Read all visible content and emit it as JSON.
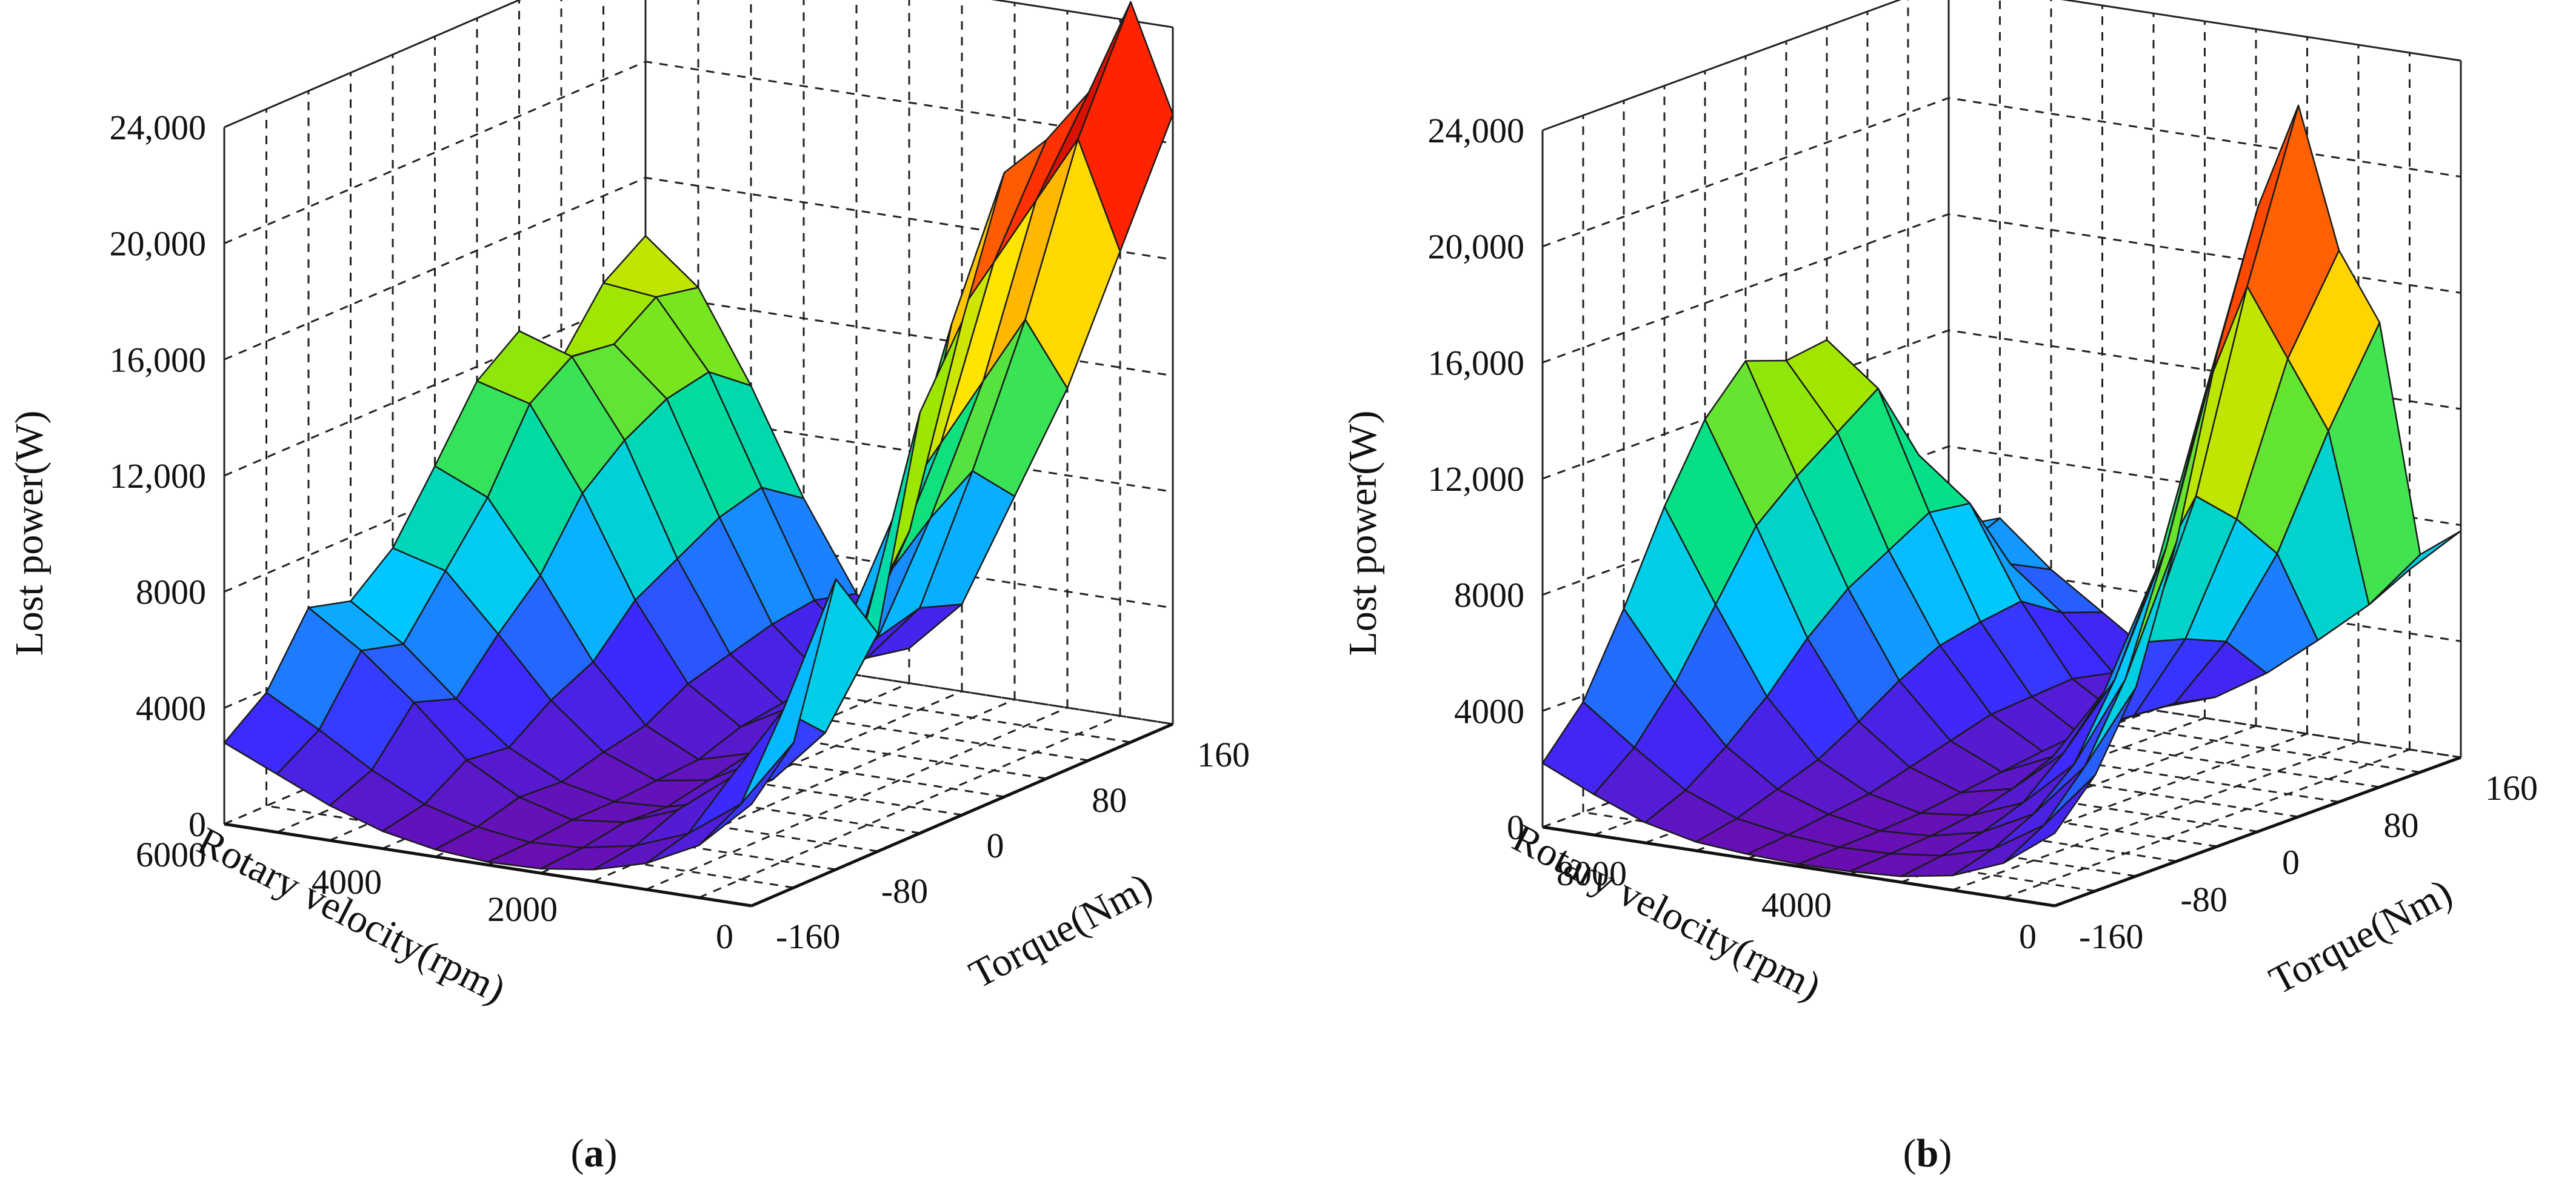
{
  "colors": {
    "colormap": [
      "#6a0dad",
      "#3b2bff",
      "#00c8ff",
      "#00e08a",
      "#9be600",
      "#ffe400",
      "#ff8a00",
      "#ff1a00",
      "#8b0000"
    ],
    "axes": "#222222",
    "background": "#ffffff"
  },
  "chart_data": [
    {
      "type": "surface",
      "panel_label": "a",
      "zlabel": "Lost power(W)",
      "xlabel": "Rotary velocity(rpm)",
      "ylabel": "Torque(Nm)",
      "zlim": [
        0,
        24000
      ],
      "xlim": [
        0,
        6000
      ],
      "ylim": [
        -160,
        160
      ],
      "z_ticks": [
        "0",
        "4000",
        "8000",
        "12,000",
        "16,000",
        "20,000",
        "24,000"
      ],
      "x_ticks": [
        "0",
        "2000",
        "4000",
        "6000"
      ],
      "y_ticks": [
        "-160",
        "-80",
        "0",
        "80",
        "160"
      ],
      "x": [
        0,
        600,
        1200,
        1800,
        2400,
        3000,
        3600,
        4200,
        4800,
        5400,
        6000
      ],
      "y": [
        -160,
        -128,
        -96,
        -64,
        -32,
        0,
        32,
        64,
        96,
        128,
        160
      ],
      "z": [
        [
          3500,
          1800,
          900,
          400,
          150,
          100,
          250,
          600,
          1200,
          2000,
          2800
        ],
        [
          5000,
          2600,
          1300,
          600,
          250,
          150,
          400,
          900,
          1800,
          2900,
          3900
        ],
        [
          10000,
          5200,
          2600,
          1200,
          500,
          300,
          800,
          1800,
          3500,
          5000,
          6200
        ],
        [
          7500,
          3800,
          1900,
          900,
          400,
          300,
          700,
          1600,
          3000,
          4600,
          5800
        ],
        [
          14500,
          7200,
          3600,
          1700,
          700,
          400,
          1100,
          2600,
          4600,
          6500,
          7000
        ],
        [
          17000,
          9500,
          5200,
          2500,
          1000,
          500,
          1400,
          3300,
          6000,
          8400,
          9200
        ],
        [
          21500,
          16000,
          9500,
          5000,
          2000,
          1000,
          2200,
          4800,
          8200,
          11000,
          11500
        ],
        [
          22000,
          17500,
          11000,
          6200,
          2600,
          1200,
          2600,
          5600,
          9400,
          12000,
          12600
        ],
        [
          23000,
          19000,
          12500,
          7500,
          3100,
          1400,
          3000,
          6400,
          10200,
          11800,
          11000
        ],
        [
          25500,
          20500,
          14000,
          8500,
          3500,
          1500,
          3200,
          6800,
          10500,
          12800,
          13000
        ],
        [
          21000,
          16000,
          11000,
          7000,
          3000,
          1200,
          2800,
          5800,
          9400,
          12500,
          14000
        ]
      ]
    },
    {
      "type": "surface",
      "panel_label": "b",
      "zlabel": "Lost power(W)",
      "xlabel": "Rotary velocity(rpm)",
      "ylabel": "Torque(Nm)",
      "zlim": [
        0,
        24000
      ],
      "xlim": [
        0,
        10000
      ],
      "ylim": [
        -160,
        160
      ],
      "z_ticks": [
        "0",
        "4000",
        "8000",
        "12,000",
        "16,000",
        "20,000",
        "24,000"
      ],
      "x_ticks": [
        "0",
        "4000",
        "8000"
      ],
      "y_ticks": [
        "-160",
        "-80",
        "0",
        "80",
        "160"
      ],
      "x": [
        0,
        1000,
        2000,
        3000,
        4000,
        5000,
        6000,
        7000,
        8000,
        9000,
        10000
      ],
      "y": [
        -160,
        -128,
        -96,
        -64,
        -32,
        0,
        32,
        64,
        96,
        128,
        160
      ],
      "z": [
        [
          2500,
          1200,
          500,
          200,
          100,
          80,
          150,
          300,
          700,
          1400,
          2200
        ],
        [
          4000,
          2000,
          900,
          400,
          200,
          150,
          300,
          600,
          1300,
          2500,
          3800
        ],
        [
          6500,
          3500,
          1600,
          700,
          300,
          200,
          500,
          1100,
          2300,
          4200,
          6500
        ],
        [
          11000,
          6000,
          2800,
          1200,
          500,
          300,
          700,
          1600,
          3500,
          6400,
          9500
        ],
        [
          17000,
          10000,
          5200,
          2400,
          900,
          500,
          1100,
          2400,
          5000,
          8600,
          12000
        ],
        [
          21500,
          15000,
          8400,
          4000,
          1500,
          700,
          1500,
          3300,
          6200,
          9800,
          13500
        ],
        [
          24500,
          18000,
          10500,
          5200,
          2000,
          900,
          1900,
          4000,
          7000,
          10800,
          13000
        ],
        [
          19000,
          15000,
          9200,
          4800,
          1900,
          900,
          2000,
          4300,
          7800,
          11800,
          13200
        ],
        [
          16000,
          12000,
          7500,
          4200,
          1800,
          1000,
          2100,
          4500,
          7600,
          9000,
          5500
        ],
        [
          7500,
          5500,
          4000,
          2600,
          1500,
          900,
          1800,
          3600,
          5000,
          5200,
          5000
        ],
        [
          7800,
          6200,
          4800,
          3400,
          2100,
          1200,
          1900,
          3100,
          4300,
          5800,
          5200
        ]
      ]
    }
  ]
}
